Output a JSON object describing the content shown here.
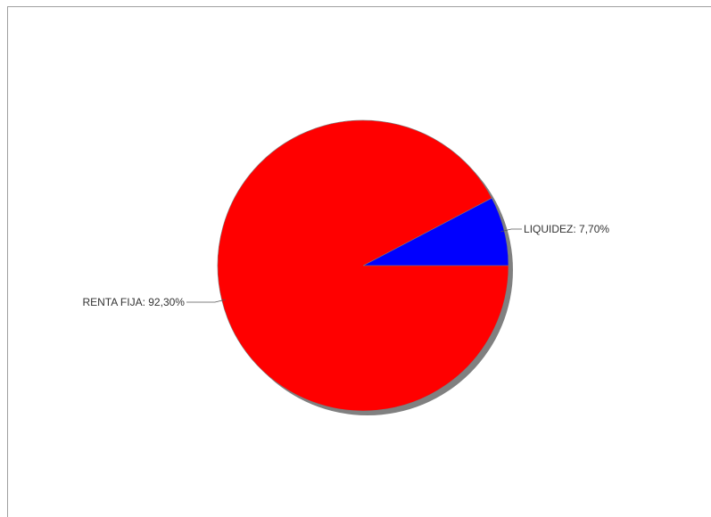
{
  "chart_data": {
    "type": "pie",
    "slices": [
      {
        "label": "LIQUIDEZ: 7,70%",
        "category": "LIQUIDEZ",
        "value": 7.7,
        "color": "#0000ff"
      },
      {
        "label": "RENTA FIJA: 92,30%",
        "category": "RENTA FIJA",
        "value": 92.3,
        "color": "#ff0000"
      }
    ],
    "start_angle_deg": 0,
    "direction": "counterclockwise",
    "shadow": true
  }
}
